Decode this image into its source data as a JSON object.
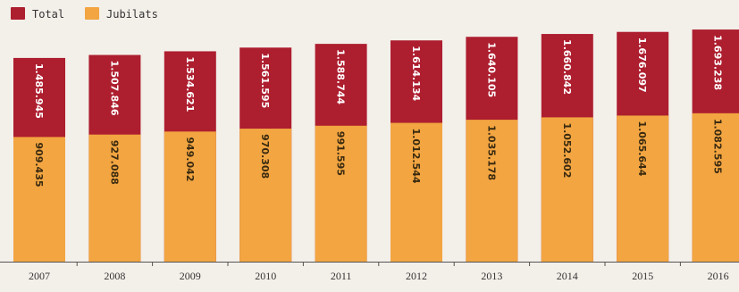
{
  "chart_data": {
    "type": "bar",
    "stacked": false,
    "overlapping": true,
    "title": "",
    "xlabel": "",
    "ylabel": "",
    "categories": [
      "2007",
      "2008",
      "2009",
      "2010",
      "2011",
      "2012",
      "2013",
      "2014",
      "2015",
      "2016"
    ],
    "series": [
      {
        "name": "Total",
        "color": "#ad1e2f",
        "text_color": "#ffffff",
        "values": [
          1485945,
          1507846,
          1534621,
          1561595,
          1588744,
          1614134,
          1640105,
          1660842,
          1676097,
          1693238
        ],
        "labels": [
          "1.485.945",
          "1.507.846",
          "1.534.621",
          "1.561.595",
          "1.588.744",
          "1.614.134",
          "1.640.105",
          "1.660.842",
          "1.676.097",
          "1.693.238"
        ]
      },
      {
        "name": "Jubilats",
        "color": "#f2a541",
        "text_color": "#3a2a10",
        "values": [
          909435,
          927088,
          949042,
          970308,
          991595,
          1012544,
          1035178,
          1052602,
          1065644,
          1082595
        ],
        "labels": [
          "909.435",
          "927.088",
          "949.042",
          "970.308",
          "991.595",
          "1.012.544",
          "1.035.178",
          "1.052.602",
          "1.065.644",
          "1.082.595"
        ]
      }
    ],
    "legend_position": "top-left",
    "grid": false,
    "axis_line_color": "#555555"
  }
}
